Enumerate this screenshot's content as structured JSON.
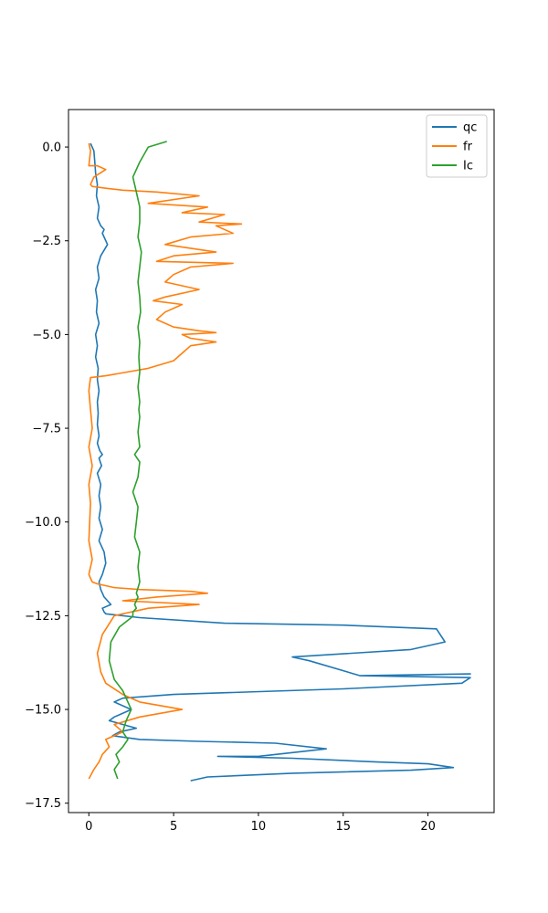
{
  "chart_data": {
    "type": "line",
    "title": "",
    "xlabel": "",
    "ylabel": "",
    "xlim": [
      -1.2,
      23.9
    ],
    "ylim": [
      -17.75,
      1.0
    ],
    "xticks": [
      0,
      5,
      10,
      15,
      20
    ],
    "yticks": [
      0.0,
      -2.5,
      -5.0,
      -7.5,
      -10.0,
      -12.5,
      -15.0,
      -17.5
    ],
    "xtick_labels": [
      "0",
      "5",
      "10",
      "15",
      "20"
    ],
    "ytick_labels": [
      "0.0",
      "−2.5",
      "−5.0",
      "−7.5",
      "−10.0",
      "−12.5",
      "−15.0",
      "−17.5"
    ],
    "grid": false,
    "legend_position": "top-right",
    "series": [
      {
        "name": "qc",
        "color": "#1f77b4",
        "x": [
          0.1,
          0.3,
          0.35,
          0.4,
          0.5,
          0.45,
          0.6,
          0.5,
          0.7,
          0.9,
          0.8,
          1.1,
          0.7,
          0.5,
          0.6,
          0.4,
          0.5,
          0.45,
          0.6,
          0.4,
          0.5,
          0.4,
          0.55,
          0.5,
          0.6,
          0.5,
          0.55,
          0.5,
          0.6,
          0.5,
          0.65,
          0.8,
          0.6,
          0.75,
          0.5,
          0.7,
          0.6,
          0.7,
          0.6,
          0.8,
          0.6,
          0.9,
          1.0,
          0.8,
          0.6,
          0.7,
          0.9,
          1.3,
          0.8,
          0.9,
          1.0,
          3.0,
          8.0,
          15.0,
          20.5,
          21.0,
          19.0,
          12.0,
          13.0,
          16.0,
          22.5,
          16.0,
          22.5,
          22.0,
          15.0,
          5.0,
          2.0,
          1.5,
          2.5,
          1.5,
          1.2,
          2.0,
          2.8,
          1.8,
          1.4,
          3.0,
          6.5,
          11.0,
          14.0,
          12.0,
          10.0,
          7.6,
          12.0,
          17.0,
          20.0,
          21.5,
          19.0,
          12.0,
          7.0,
          6.0
        ],
        "y": [
          0.1,
          -0.1,
          -0.4,
          -0.7,
          -1.0,
          -1.3,
          -1.6,
          -1.9,
          -2.1,
          -2.2,
          -2.3,
          -2.6,
          -2.9,
          -3.2,
          -3.5,
          -3.8,
          -4.1,
          -4.4,
          -4.7,
          -5.0,
          -5.3,
          -5.6,
          -5.9,
          -6.2,
          -6.5,
          -6.8,
          -7.1,
          -7.4,
          -7.7,
          -7.9,
          -8.1,
          -8.2,
          -8.3,
          -8.5,
          -8.7,
          -9.0,
          -9.3,
          -9.6,
          -9.9,
          -10.2,
          -10.5,
          -10.8,
          -11.1,
          -11.4,
          -11.6,
          -11.8,
          -12.0,
          -12.2,
          -12.3,
          -12.4,
          -12.45,
          -12.55,
          -12.7,
          -12.75,
          -12.85,
          -13.2,
          -13.4,
          -13.6,
          -13.7,
          -14.1,
          -14.05,
          -14.1,
          -14.15,
          -14.3,
          -14.45,
          -14.6,
          -14.7,
          -14.8,
          -15.0,
          -15.2,
          -15.3,
          -15.4,
          -15.5,
          -15.6,
          -15.7,
          -15.8,
          -15.85,
          -15.9,
          -16.05,
          -16.15,
          -16.25,
          -16.25,
          -16.3,
          -16.4,
          -16.45,
          -16.55,
          -16.62,
          -16.7,
          -16.8,
          -16.9
        ]
      },
      {
        "name": "fr",
        "color": "#ff7f0e",
        "x": [
          0.0,
          0.1,
          0.05,
          0.0,
          0.5,
          1.0,
          0.3,
          0.1,
          0.2,
          1.0,
          2.0,
          4.0,
          6.5,
          3.5,
          7.0,
          5.5,
          8.0,
          6.5,
          9.0,
          7.5,
          8.5,
          6.0,
          4.5,
          6.0,
          7.5,
          5.0,
          4.0,
          8.5,
          6.0,
          5.0,
          4.5,
          6.5,
          4.5,
          3.8,
          5.5,
          4.5,
          4.0,
          5.0,
          6.5,
          7.5,
          5.5,
          6.0,
          7.5,
          6.0,
          5.5,
          5.0,
          3.5,
          1.0,
          0.1,
          0.0,
          0.1,
          0.2,
          0.0,
          0.2,
          0.0,
          0.1,
          0.05,
          0.0,
          0.2,
          0.1,
          0.0,
          0.1,
          0.2,
          0.5,
          1.0,
          1.5,
          3.0,
          6.0,
          7.0,
          4.0,
          2.0,
          6.5,
          3.5,
          1.5,
          0.8,
          0.5,
          0.7,
          1.0,
          2.0,
          3.0,
          5.5,
          3.0,
          1.5,
          2.0,
          1.0,
          1.2,
          0.8,
          0.6,
          0.3,
          0.0
        ],
        "y": [
          0.1,
          -0.1,
          -0.3,
          -0.5,
          -0.5,
          -0.6,
          -0.8,
          -1.0,
          -1.05,
          -1.1,
          -1.15,
          -1.2,
          -1.3,
          -1.5,
          -1.6,
          -1.75,
          -1.8,
          -2.0,
          -2.05,
          -2.1,
          -2.3,
          -2.4,
          -2.6,
          -2.7,
          -2.8,
          -2.9,
          -3.05,
          -3.1,
          -3.2,
          -3.4,
          -3.6,
          -3.8,
          -4.0,
          -4.1,
          -4.2,
          -4.4,
          -4.6,
          -4.8,
          -4.9,
          -4.95,
          -5.0,
          -5.1,
          -5.2,
          -5.3,
          -5.5,
          -5.7,
          -5.9,
          -6.1,
          -6.15,
          -6.5,
          -7.0,
          -7.5,
          -8.0,
          -8.5,
          -9.0,
          -9.5,
          -10.0,
          -10.5,
          -11.0,
          -11.2,
          -11.4,
          -11.5,
          -11.6,
          -11.65,
          -11.7,
          -11.75,
          -11.8,
          -11.85,
          -11.9,
          -12.0,
          -12.1,
          -12.2,
          -12.3,
          -12.5,
          -13.0,
          -13.5,
          -14.0,
          -14.3,
          -14.6,
          -14.8,
          -15.0,
          -15.2,
          -15.4,
          -15.6,
          -15.8,
          -16.0,
          -16.2,
          -16.4,
          -16.6,
          -16.85
        ]
      },
      {
        "name": "Ic",
        "color": "#2ca02c",
        "x": [
          4.6,
          3.5,
          3.0,
          2.6,
          2.8,
          3.0,
          3.0,
          2.9,
          3.1,
          3.0,
          2.9,
          3.0,
          3.05,
          2.9,
          3.0,
          2.95,
          3.0,
          2.9,
          3.0,
          2.95,
          3.0,
          2.9,
          3.0,
          2.7,
          3.0,
          2.9,
          2.6,
          2.9,
          2.8,
          2.7,
          3.0,
          2.9,
          3.0,
          2.8,
          2.9,
          2.8,
          2.7,
          2.8,
          2.6,
          2.6,
          2.5,
          1.8,
          1.3,
          1.2,
          1.5,
          2.0,
          2.2,
          2.5,
          2.2,
          2.0,
          2.3,
          2.0,
          1.6,
          1.8,
          1.5,
          1.7
        ],
        "y": [
          0.15,
          0.0,
          -0.4,
          -0.8,
          -1.2,
          -1.6,
          -2.0,
          -2.4,
          -2.8,
          -3.2,
          -3.6,
          -4.0,
          -4.4,
          -4.8,
          -5.2,
          -5.6,
          -6.0,
          -6.4,
          -6.8,
          -7.0,
          -7.2,
          -7.6,
          -8.0,
          -8.2,
          -8.4,
          -8.8,
          -9.2,
          -9.6,
          -10.0,
          -10.4,
          -10.8,
          -11.2,
          -11.6,
          -11.9,
          -12.0,
          -12.1,
          -12.2,
          -12.3,
          -12.4,
          -12.5,
          -12.55,
          -12.8,
          -13.2,
          -13.7,
          -14.2,
          -14.5,
          -14.7,
          -15.0,
          -15.3,
          -15.6,
          -15.8,
          -16.0,
          -16.2,
          -16.4,
          -16.6,
          -16.85
        ]
      }
    ]
  }
}
